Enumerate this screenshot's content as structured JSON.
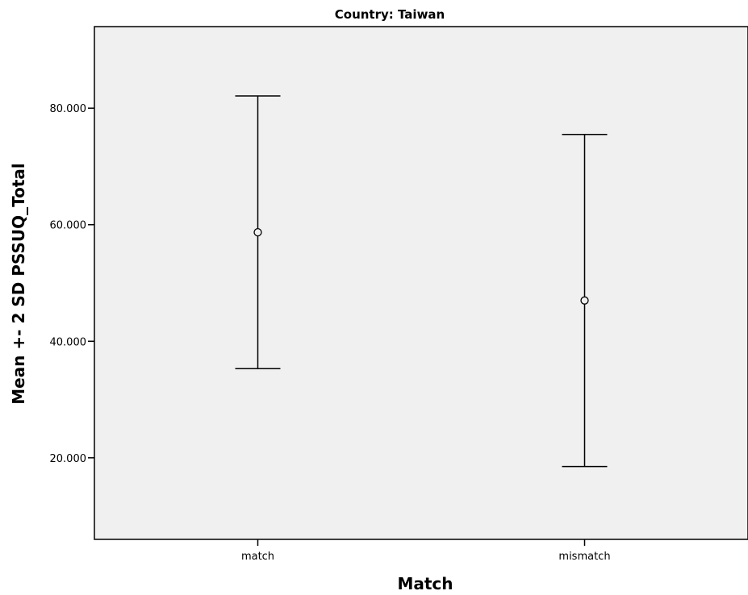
{
  "chart_data": {
    "type": "errorbar",
    "title": "Country: Taiwan",
    "xlabel": "Match",
    "ylabel": "Mean +- 2 SD PSSUQ_Total",
    "ylim": [
      6,
      94
    ],
    "yticks": [
      20,
      40,
      60,
      80
    ],
    "ytick_labels": [
      "20.000",
      "40.000",
      "60.000",
      "80.000"
    ],
    "categories": [
      "match",
      "mismatch"
    ],
    "means": [
      58.7,
      47.0
    ],
    "lower": [
      35.3,
      18.5
    ],
    "upper": [
      82.1,
      75.5
    ],
    "grid": false,
    "legend": "none",
    "colors": {
      "plot_background": "#f0f0f0",
      "line": "#000000"
    }
  }
}
